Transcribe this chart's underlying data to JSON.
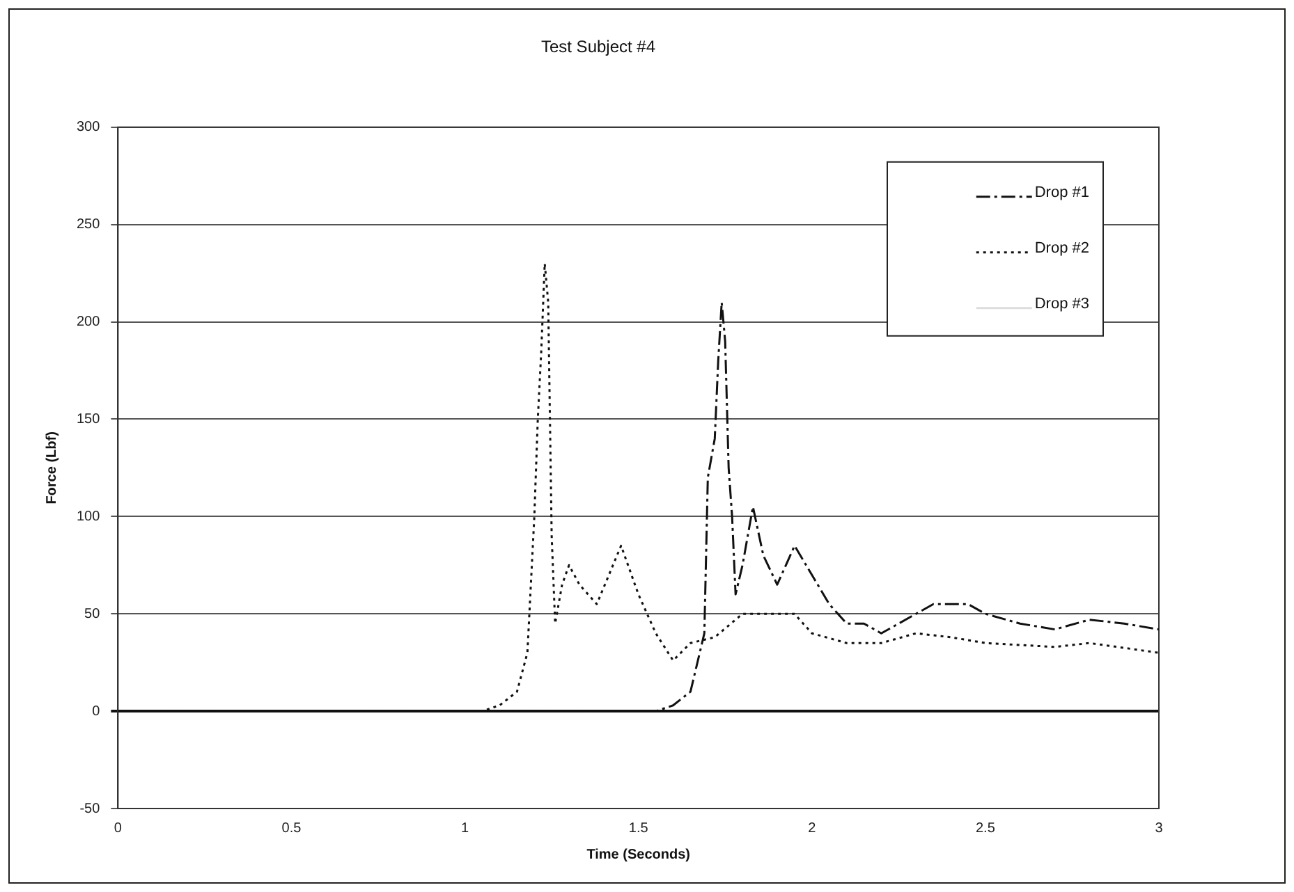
{
  "chart_data": {
    "type": "line",
    "title": "Test Subject #4",
    "xlabel": "Time (Seconds)",
    "ylabel": "Force (Lbf)",
    "xlim": [
      0,
      3
    ],
    "xticks": [
      0,
      0.5,
      1,
      1.5,
      2,
      2.5,
      3
    ],
    "ylim": [
      -50,
      300
    ],
    "yticks": [
      -50,
      0,
      50,
      100,
      150,
      200,
      250,
      300
    ],
    "grid": "y",
    "legend": "top right",
    "marker": "none",
    "series": [
      {
        "name": "Drop #1",
        "color": "#111111",
        "line_style": "dashed",
        "x": [
          0,
          1.55,
          1.6,
          1.65,
          1.69,
          1.7,
          1.72,
          1.73,
          1.74,
          1.75,
          1.76,
          1.77,
          1.78,
          1.8,
          1.83,
          1.86,
          1.9,
          1.95,
          2.0,
          2.05,
          2.1,
          2.15,
          2.2,
          2.3,
          2.35,
          2.45,
          2.5,
          2.6,
          2.7,
          2.8,
          2.9,
          3
        ],
        "values": [
          0,
          0,
          3,
          10,
          40,
          120,
          140,
          180,
          210,
          190,
          125,
          100,
          60,
          75,
          105,
          80,
          65,
          85,
          70,
          55,
          45,
          45,
          40,
          50,
          55,
          55,
          50,
          45,
          42,
          47,
          45,
          42
        ]
      },
      {
        "name": "Drop #2",
        "color": "#111111",
        "line_style": "dotted",
        "x": [
          0,
          1.05,
          1.1,
          1.15,
          1.18,
          1.2,
          1.21,
          1.22,
          1.23,
          1.24,
          1.25,
          1.26,
          1.28,
          1.3,
          1.33,
          1.38,
          1.45,
          1.5,
          1.55,
          1.6,
          1.65,
          1.72,
          1.8,
          1.95,
          2.0,
          2.1,
          2.2,
          2.3,
          2.4,
          2.5,
          2.7,
          2.8,
          3
        ],
        "values": [
          0,
          0,
          3,
          10,
          30,
          100,
          150,
          185,
          230,
          210,
          90,
          45,
          65,
          75,
          65,
          55,
          85,
          60,
          40,
          26,
          35,
          38,
          50,
          50,
          40,
          35,
          35,
          40,
          38,
          35,
          33,
          35,
          30
        ]
      },
      {
        "name": "Drop #3",
        "color": "#dddddd",
        "line_style": "solid"
      }
    ]
  }
}
